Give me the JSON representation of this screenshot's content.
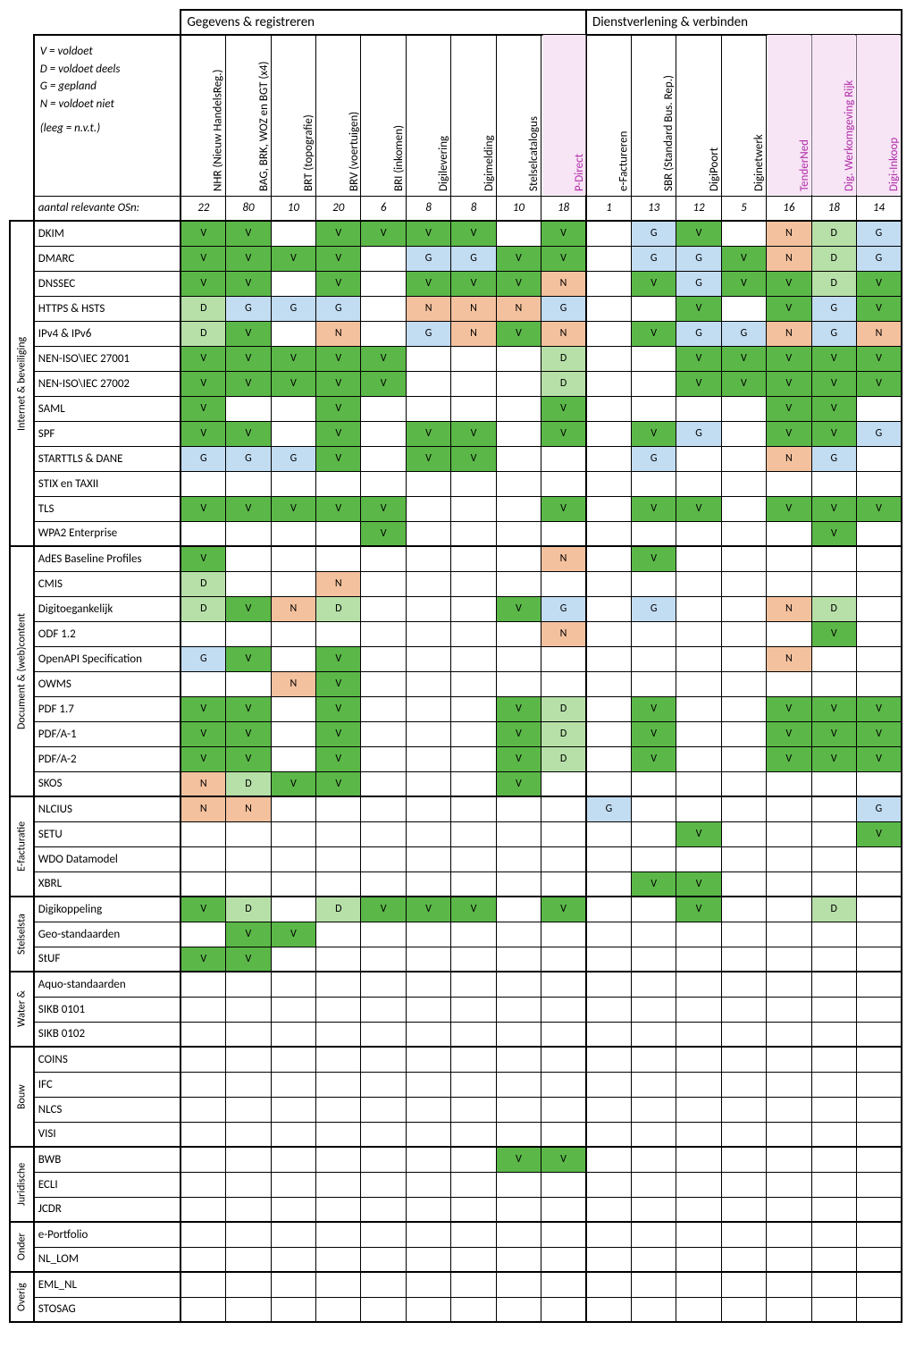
{
  "legend": {
    "l1": "V = voldoet",
    "l2": "D = voldoet deels",
    "l3": "G = gepland",
    "l4": "N = voldoet niet",
    "l5": "(leeg = n.v.t.)"
  },
  "section_headers": {
    "s1": "Gegevens & registreren",
    "s2": "Dienstverlening & verbinden"
  },
  "columns": [
    {
      "label": "NHR (Nieuw HandelsReg.)",
      "count": "22",
      "pink": false
    },
    {
      "label": "BAG, BRK, WOZ en BGT (x4)",
      "count": "80",
      "pink": false
    },
    {
      "label": "BRT (topografie)",
      "count": "10",
      "pink": false
    },
    {
      "label": "BRV (voertuigen)",
      "count": "20",
      "pink": false
    },
    {
      "label": "BRI (inkomen)",
      "count": "6",
      "pink": false
    },
    {
      "label": "Digilevering",
      "count": "8",
      "pink": false
    },
    {
      "label": "Digimelding",
      "count": "8",
      "pink": false
    },
    {
      "label": "Stelselcatalogus",
      "count": "10",
      "pink": false
    },
    {
      "label": "P-Direct",
      "count": "18",
      "pink": true
    },
    {
      "label": "e-Factureren",
      "count": "1",
      "pink": false
    },
    {
      "label": "SBR (Standard Bus. Rep.)",
      "count": "13",
      "pink": false
    },
    {
      "label": "DigiPoort",
      "count": "12",
      "pink": false
    },
    {
      "label": "Diginetwerk",
      "count": "5",
      "pink": false
    },
    {
      "label": "TenderNed",
      "count": "16",
      "pink": true
    },
    {
      "label": "Dig. Werkomgeving Rijk",
      "count": "18",
      "pink": true
    },
    {
      "label": "Digi-Inkoop",
      "count": "14",
      "pink": true
    }
  ],
  "counts_label": "aantal relevante OSn:",
  "colors": {
    "V": "#5bb848",
    "D": "#b7e0a8",
    "G": "#c2dcf2",
    "N": "#f4c19e",
    "pink_text": "#b02da8",
    "pink_bg": "#f7e4f5"
  },
  "categories": [
    {
      "label": "Internet & beveiliging",
      "rows": [
        {
          "label": "DKIM",
          "cells": [
            "V",
            "V",
            "",
            "V",
            "V",
            "V",
            "V",
            "",
            "V",
            "",
            "G",
            "V",
            "",
            "N",
            "D",
            "G"
          ]
        },
        {
          "label": "DMARC",
          "cells": [
            "V",
            "V",
            "V",
            "V",
            "",
            "G",
            "G",
            "V",
            "V",
            "",
            "G",
            "G",
            "V",
            "N",
            "D",
            "G"
          ]
        },
        {
          "label": "DNSSEC",
          "cells": [
            "V",
            "V",
            "",
            "V",
            "",
            "V",
            "V",
            "V",
            "N",
            "",
            "V",
            "G",
            "V",
            "V",
            "D",
            "V"
          ]
        },
        {
          "label": "HTTPS & HSTS",
          "cells": [
            "D",
            "G",
            "G",
            "G",
            "",
            "N",
            "N",
            "N",
            "G",
            "",
            "",
            "V",
            "",
            "V",
            "G",
            "V"
          ]
        },
        {
          "label": "IPv4 & IPv6",
          "cells": [
            "D",
            "V",
            "",
            "N",
            "",
            "G",
            "N",
            "V",
            "N",
            "",
            "V",
            "G",
            "G",
            "N",
            "G",
            "N"
          ]
        },
        {
          "label": "NEN-ISO\\IEC 27001",
          "cells": [
            "V",
            "V",
            "V",
            "V",
            "V",
            "",
            "",
            "",
            "D",
            "",
            "",
            "V",
            "V",
            "V",
            "V",
            "V"
          ]
        },
        {
          "label": "NEN-ISO\\IEC 27002",
          "cells": [
            "V",
            "V",
            "V",
            "V",
            "V",
            "",
            "",
            "",
            "D",
            "",
            "",
            "V",
            "V",
            "V",
            "V",
            "V"
          ]
        },
        {
          "label": "SAML",
          "cells": [
            "V",
            "",
            "",
            "V",
            "",
            "",
            "",
            "",
            "V",
            "",
            "",
            "",
            "",
            "V",
            "V",
            ""
          ]
        },
        {
          "label": "SPF",
          "cells": [
            "V",
            "V",
            "",
            "V",
            "",
            "V",
            "V",
            "",
            "V",
            "",
            "V",
            "G",
            "",
            "V",
            "V",
            "G"
          ]
        },
        {
          "label": "STARTTLS & DANE",
          "cells": [
            "G",
            "G",
            "G",
            "V",
            "",
            "V",
            "V",
            "",
            "",
            "",
            "G",
            "",
            "",
            "N",
            "G",
            ""
          ]
        },
        {
          "label": "STIX en TAXII",
          "cells": [
            "",
            "",
            "",
            "",
            "",
            "",
            "",
            "",
            "",
            "",
            "",
            "",
            "",
            "",
            "",
            ""
          ]
        },
        {
          "label": "TLS",
          "cells": [
            "V",
            "V",
            "V",
            "V",
            "V",
            "",
            "",
            "",
            "V",
            "",
            "V",
            "V",
            "",
            "V",
            "V",
            "V"
          ]
        },
        {
          "label": "WPA2 Enterprise",
          "cells": [
            "",
            "",
            "",
            "",
            "V",
            "",
            "",
            "",
            "",
            "",
            "",
            "",
            "",
            "",
            "V",
            ""
          ]
        }
      ]
    },
    {
      "label": "Document & (web)content",
      "rows": [
        {
          "label": "AdES Baseline Profiles",
          "cells": [
            "V",
            "",
            "",
            "",
            "",
            "",
            "",
            "",
            "N",
            "",
            "V",
            "",
            "",
            "",
            "",
            ""
          ]
        },
        {
          "label": "CMIS",
          "cells": [
            "D",
            "",
            "",
            "N",
            "",
            "",
            "",
            "",
            "",
            "",
            "",
            "",
            "",
            "",
            "",
            ""
          ]
        },
        {
          "label": "Digitoegankelijk",
          "cells": [
            "D",
            "V",
            "N",
            "D",
            "",
            "",
            "",
            "V",
            "G",
            "",
            "G",
            "",
            "",
            "N",
            "D",
            ""
          ]
        },
        {
          "label": "ODF 1.2",
          "cells": [
            "",
            "",
            "",
            "",
            "",
            "",
            "",
            "",
            "N",
            "",
            "",
            "",
            "",
            "",
            "V",
            ""
          ]
        },
        {
          "label": "OpenAPI Specification",
          "cells": [
            "G",
            "V",
            "",
            "V",
            "",
            "",
            "",
            "",
            "",
            "",
            "",
            "",
            "",
            "N",
            "",
            ""
          ]
        },
        {
          "label": "OWMS",
          "cells": [
            "",
            "",
            "N",
            "V",
            "",
            "",
            "",
            "",
            "",
            "",
            "",
            "",
            "",
            "",
            "",
            ""
          ]
        },
        {
          "label": "PDF 1.7",
          "cells": [
            "V",
            "V",
            "",
            "V",
            "",
            "",
            "",
            "V",
            "D",
            "",
            "V",
            "",
            "",
            "V",
            "V",
            "V"
          ]
        },
        {
          "label": "PDF/A-1",
          "cells": [
            "V",
            "V",
            "",
            "V",
            "",
            "",
            "",
            "V",
            "D",
            "",
            "V",
            "",
            "",
            "V",
            "V",
            "V"
          ]
        },
        {
          "label": "PDF/A-2",
          "cells": [
            "V",
            "V",
            "",
            "V",
            "",
            "",
            "",
            "V",
            "D",
            "",
            "V",
            "",
            "",
            "V",
            "V",
            "V"
          ]
        },
        {
          "label": "SKOS",
          "cells": [
            "N",
            "D",
            "V",
            "V",
            "",
            "",
            "",
            "V",
            "",
            "",
            "",
            "",
            "",
            "",
            "",
            ""
          ]
        }
      ]
    },
    {
      "label": "E-facturatie",
      "rows": [
        {
          "label": "NLCIUS",
          "cells": [
            "N",
            "N",
            "",
            "",
            "",
            "",
            "",
            "",
            "",
            "G",
            "",
            "",
            "",
            "",
            "",
            "G"
          ]
        },
        {
          "label": "SETU",
          "cells": [
            "",
            "",
            "",
            "",
            "",
            "",
            "",
            "",
            "",
            "",
            "",
            "V",
            "",
            "",
            "",
            "V"
          ]
        },
        {
          "label": "WDO Datamodel",
          "cells": [
            "",
            "",
            "",
            "",
            "",
            "",
            "",
            "",
            "",
            "",
            "",
            "",
            "",
            "",
            "",
            ""
          ]
        },
        {
          "label": "XBRL",
          "cells": [
            "",
            "",
            "",
            "",
            "",
            "",
            "",
            "",
            "",
            "",
            "V",
            "V",
            "",
            "",
            "",
            ""
          ]
        }
      ]
    },
    {
      "label": "Stelselsta",
      "rows": [
        {
          "label": "Digikoppeling",
          "cells": [
            "V",
            "D",
            "",
            "D",
            "V",
            "V",
            "V",
            "",
            "V",
            "",
            "",
            "V",
            "",
            "",
            "D",
            ""
          ]
        },
        {
          "label": "Geo-standaarden",
          "cells": [
            "",
            "V",
            "V",
            "",
            "",
            "",
            "",
            "",
            "",
            "",
            "",
            "",
            "",
            "",
            "",
            ""
          ]
        },
        {
          "label": "StUF",
          "cells": [
            "V",
            "V",
            "",
            "",
            "",
            "",
            "",
            "",
            "",
            "",
            "",
            "",
            "",
            "",
            "",
            ""
          ]
        }
      ]
    },
    {
      "label": "Water &",
      "rows": [
        {
          "label": "Aquo-standaarden",
          "cells": [
            "",
            "",
            "",
            "",
            "",
            "",
            "",
            "",
            "",
            "",
            "",
            "",
            "",
            "",
            "",
            ""
          ]
        },
        {
          "label": "SIKB 0101",
          "cells": [
            "",
            "",
            "",
            "",
            "",
            "",
            "",
            "",
            "",
            "",
            "",
            "",
            "",
            "",
            "",
            ""
          ]
        },
        {
          "label": "SIKB 0102",
          "cells": [
            "",
            "",
            "",
            "",
            "",
            "",
            "",
            "",
            "",
            "",
            "",
            "",
            "",
            "",
            "",
            ""
          ]
        }
      ]
    },
    {
      "label": "Bouw",
      "rows": [
        {
          "label": "COINS",
          "cells": [
            "",
            "",
            "",
            "",
            "",
            "",
            "",
            "",
            "",
            "",
            "",
            "",
            "",
            "",
            "",
            ""
          ]
        },
        {
          "label": "IFC",
          "cells": [
            "",
            "",
            "",
            "",
            "",
            "",
            "",
            "",
            "",
            "",
            "",
            "",
            "",
            "",
            "",
            ""
          ]
        },
        {
          "label": "NLCS",
          "cells": [
            "",
            "",
            "",
            "",
            "",
            "",
            "",
            "",
            "",
            "",
            "",
            "",
            "",
            "",
            "",
            ""
          ]
        },
        {
          "label": "VISI",
          "cells": [
            "",
            "",
            "",
            "",
            "",
            "",
            "",
            "",
            "",
            "",
            "",
            "",
            "",
            "",
            "",
            ""
          ]
        }
      ]
    },
    {
      "label": "Juridische",
      "rows": [
        {
          "label": "BWB",
          "cells": [
            "",
            "",
            "",
            "",
            "",
            "",
            "",
            "V",
            "V",
            "",
            "",
            "",
            "",
            "",
            "",
            ""
          ]
        },
        {
          "label": "ECLI",
          "cells": [
            "",
            "",
            "",
            "",
            "",
            "",
            "",
            "",
            "",
            "",
            "",
            "",
            "",
            "",
            "",
            ""
          ]
        },
        {
          "label": "JCDR",
          "cells": [
            "",
            "",
            "",
            "",
            "",
            "",
            "",
            "",
            "",
            "",
            "",
            "",
            "",
            "",
            "",
            ""
          ]
        }
      ]
    },
    {
      "label": "Onder",
      "rows": [
        {
          "label": "e-Portfolio",
          "cells": [
            "",
            "",
            "",
            "",
            "",
            "",
            "",
            "",
            "",
            "",
            "",
            "",
            "",
            "",
            "",
            ""
          ]
        },
        {
          "label": "NL_LOM",
          "cells": [
            "",
            "",
            "",
            "",
            "",
            "",
            "",
            "",
            "",
            "",
            "",
            "",
            "",
            "",
            "",
            ""
          ]
        }
      ]
    },
    {
      "label": "Overig",
      "rows": [
        {
          "label": "EML_NL",
          "cells": [
            "",
            "",
            "",
            "",
            "",
            "",
            "",
            "",
            "",
            "",
            "",
            "",
            "",
            "",
            "",
            ""
          ]
        },
        {
          "label": "STOSAG",
          "cells": [
            "",
            "",
            "",
            "",
            "",
            "",
            "",
            "",
            "",
            "",
            "",
            "",
            "",
            "",
            "",
            ""
          ]
        }
      ]
    }
  ]
}
